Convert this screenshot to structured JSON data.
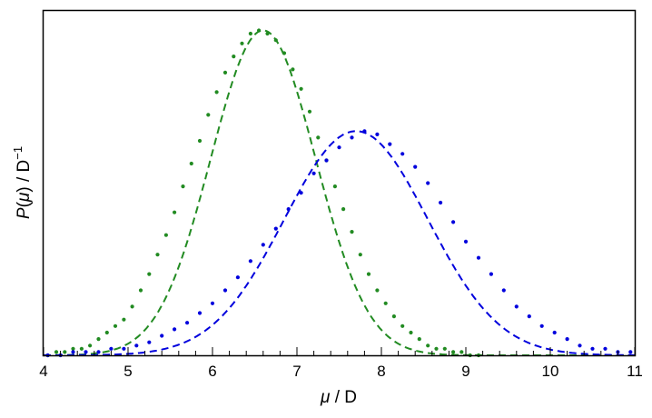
{
  "chart_data": {
    "type": "scatter",
    "title": "",
    "xlabel": {
      "var": "μ",
      "rest": " / D"
    },
    "ylabel": {
      "var": "P",
      "open": "(",
      "inner": "μ",
      "close": ")",
      "rest": " / D",
      "exp": "−1"
    },
    "xlim": [
      4,
      11
    ],
    "ylim": [
      0,
      1.06
    ],
    "x_ticks": [
      4,
      5,
      6,
      7,
      8,
      9,
      10,
      11
    ],
    "x_minor_step": 0.2,
    "y_ticks_shown": false,
    "grid": false,
    "legend": "none",
    "series": [
      {
        "color": "#228b22",
        "fit": {
          "kind": "gaussian",
          "mean": 6.6,
          "sd": 0.62,
          "peak": 1.0
        },
        "points": [
          [
            4.05,
            0.0
          ],
          [
            4.15,
            0.01
          ],
          [
            4.25,
            0.01
          ],
          [
            4.35,
            0.02
          ],
          [
            4.45,
            0.02
          ],
          [
            4.55,
            0.03
          ],
          [
            4.65,
            0.05
          ],
          [
            4.75,
            0.07
          ],
          [
            4.85,
            0.09
          ],
          [
            4.95,
            0.11
          ],
          [
            5.05,
            0.15
          ],
          [
            5.15,
            0.2
          ],
          [
            5.25,
            0.25
          ],
          [
            5.35,
            0.31
          ],
          [
            5.45,
            0.37
          ],
          [
            5.55,
            0.44
          ],
          [
            5.65,
            0.52
          ],
          [
            5.75,
            0.59
          ],
          [
            5.85,
            0.66
          ],
          [
            5.95,
            0.74
          ],
          [
            6.05,
            0.81
          ],
          [
            6.15,
            0.87
          ],
          [
            6.25,
            0.92
          ],
          [
            6.35,
            0.96
          ],
          [
            6.45,
            0.99
          ],
          [
            6.55,
            1.0
          ],
          [
            6.65,
            0.99
          ],
          [
            6.75,
            0.97
          ],
          [
            6.85,
            0.93
          ],
          [
            6.95,
            0.88
          ],
          [
            7.05,
            0.82
          ],
          [
            7.15,
            0.75
          ],
          [
            7.25,
            0.67
          ],
          [
            7.35,
            0.6
          ],
          [
            7.45,
            0.52
          ],
          [
            7.55,
            0.45
          ],
          [
            7.65,
            0.38
          ],
          [
            7.75,
            0.31
          ],
          [
            7.85,
            0.25
          ],
          [
            7.95,
            0.2
          ],
          [
            8.05,
            0.16
          ],
          [
            8.15,
            0.12
          ],
          [
            8.25,
            0.09
          ],
          [
            8.35,
            0.07
          ],
          [
            8.45,
            0.05
          ],
          [
            8.55,
            0.03
          ],
          [
            8.65,
            0.02
          ],
          [
            8.75,
            0.02
          ],
          [
            8.85,
            0.01
          ],
          [
            8.95,
            0.01
          ],
          [
            9.05,
            0.0
          ],
          [
            9.15,
            0.0
          ]
        ]
      },
      {
        "color": "#0000dd",
        "fit": {
          "kind": "gaussian",
          "mean": 7.7,
          "sd": 0.85,
          "peak": 0.69
        },
        "points": [
          [
            4.05,
            0.0
          ],
          [
            4.2,
            0.0
          ],
          [
            4.35,
            0.01
          ],
          [
            4.5,
            0.01
          ],
          [
            4.65,
            0.01
          ],
          [
            4.8,
            0.02
          ],
          [
            4.95,
            0.02
          ],
          [
            5.1,
            0.03
          ],
          [
            5.25,
            0.04
          ],
          [
            5.4,
            0.06
          ],
          [
            5.55,
            0.08
          ],
          [
            5.7,
            0.1
          ],
          [
            5.85,
            0.13
          ],
          [
            6.0,
            0.16
          ],
          [
            6.15,
            0.2
          ],
          [
            6.3,
            0.24
          ],
          [
            6.45,
            0.29
          ],
          [
            6.6,
            0.34
          ],
          [
            6.75,
            0.39
          ],
          [
            6.9,
            0.45
          ],
          [
            7.05,
            0.5
          ],
          [
            7.2,
            0.56
          ],
          [
            7.35,
            0.6
          ],
          [
            7.5,
            0.64
          ],
          [
            7.65,
            0.67
          ],
          [
            7.8,
            0.69
          ],
          [
            7.95,
            0.68
          ],
          [
            8.1,
            0.65
          ],
          [
            8.25,
            0.62
          ],
          [
            8.4,
            0.58
          ],
          [
            8.55,
            0.53
          ],
          [
            8.7,
            0.47
          ],
          [
            8.85,
            0.41
          ],
          [
            9.0,
            0.35
          ],
          [
            9.15,
            0.3
          ],
          [
            9.3,
            0.25
          ],
          [
            9.45,
            0.2
          ],
          [
            9.6,
            0.15
          ],
          [
            9.75,
            0.12
          ],
          [
            9.9,
            0.09
          ],
          [
            10.05,
            0.07
          ],
          [
            10.2,
            0.05
          ],
          [
            10.35,
            0.03
          ],
          [
            10.5,
            0.02
          ],
          [
            10.65,
            0.02
          ],
          [
            10.8,
            0.01
          ],
          [
            10.95,
            0.01
          ]
        ]
      }
    ]
  }
}
